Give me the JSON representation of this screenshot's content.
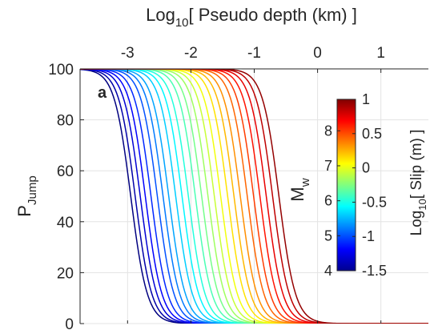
{
  "chart_data": {
    "type": "line",
    "panel_label": "a",
    "xlabel_top": {
      "prefix": "Log",
      "sub": "10",
      "suffix": "[ Pseudo depth (km) ]"
    },
    "ylabel": {
      "base": "P",
      "sub": "Jump"
    },
    "xlim": [
      -3.75,
      1.75
    ],
    "ylim": [
      0,
      100
    ],
    "x_ticks": [
      -3,
      -2,
      -1,
      0,
      1
    ],
    "x_tick_labels": [
      "-3",
      "-2",
      "-1",
      "0",
      "1"
    ],
    "y_ticks": [
      0,
      20,
      40,
      60,
      80,
      100
    ],
    "y_tick_labels": [
      "0",
      "20",
      "40",
      "60",
      "80",
      "100"
    ],
    "grid": true,
    "colorbar": {
      "colormap": "jet",
      "left_label": {
        "base": "M",
        "sub": "w"
      },
      "left_ticks": [
        "4",
        "5",
        "6",
        "7",
        "8"
      ],
      "left_range": [
        4,
        8.9
      ],
      "right_label": {
        "prefix": "Log",
        "sub": "10",
        "suffix": "[ Slip (m) ]"
      },
      "right_ticks": [
        "-1.5",
        "-1",
        "-0.5",
        "0",
        "0.5",
        "1"
      ],
      "right_range": [
        -1.5,
        1
      ]
    },
    "series_model": "logistic P = 100 / (1 + exp((x - x50) / w))",
    "series": [
      {
        "mw": 4.0,
        "x50": -2.95,
        "w": 0.13
      },
      {
        "mw": 4.2,
        "x50": -2.88,
        "w": 0.13
      },
      {
        "mw": 4.4,
        "x50": -2.8,
        "w": 0.13
      },
      {
        "mw": 4.6,
        "x50": -2.72,
        "w": 0.13
      },
      {
        "mw": 4.8,
        "x50": -2.63,
        "w": 0.13
      },
      {
        "mw": 5.0,
        "x50": -2.53,
        "w": 0.13
      },
      {
        "mw": 5.2,
        "x50": -2.44,
        "w": 0.13
      },
      {
        "mw": 5.4,
        "x50": -2.35,
        "w": 0.13
      },
      {
        "mw": 5.6,
        "x50": -2.24,
        "w": 0.13
      },
      {
        "mw": 5.8,
        "x50": -2.14,
        "w": 0.13
      },
      {
        "mw": 6.0,
        "x50": -2.04,
        "w": 0.13
      },
      {
        "mw": 6.2,
        "x50": -1.93,
        "w": 0.13
      },
      {
        "mw": 6.4,
        "x50": -1.83,
        "w": 0.13
      },
      {
        "mw": 6.6,
        "x50": -1.73,
        "w": 0.13
      },
      {
        "mw": 6.8,
        "x50": -1.63,
        "w": 0.13
      },
      {
        "mw": 7.0,
        "x50": -1.53,
        "w": 0.13
      },
      {
        "mw": 7.2,
        "x50": -1.42,
        "w": 0.13
      },
      {
        "mw": 7.4,
        "x50": -1.32,
        "w": 0.13
      },
      {
        "mw": 7.6,
        "x50": -1.22,
        "w": 0.13
      },
      {
        "mw": 7.8,
        "x50": -1.11,
        "w": 0.13
      },
      {
        "mw": 8.0,
        "x50": -1.01,
        "w": 0.13
      },
      {
        "mw": 8.2,
        "x50": -0.91,
        "w": 0.13
      },
      {
        "mw": 8.4,
        "x50": -0.81,
        "w": 0.13
      },
      {
        "mw": 8.6,
        "x50": -0.71,
        "w": 0.13
      },
      {
        "mw": 8.8,
        "x50": -0.61,
        "w": 0.13
      }
    ]
  }
}
